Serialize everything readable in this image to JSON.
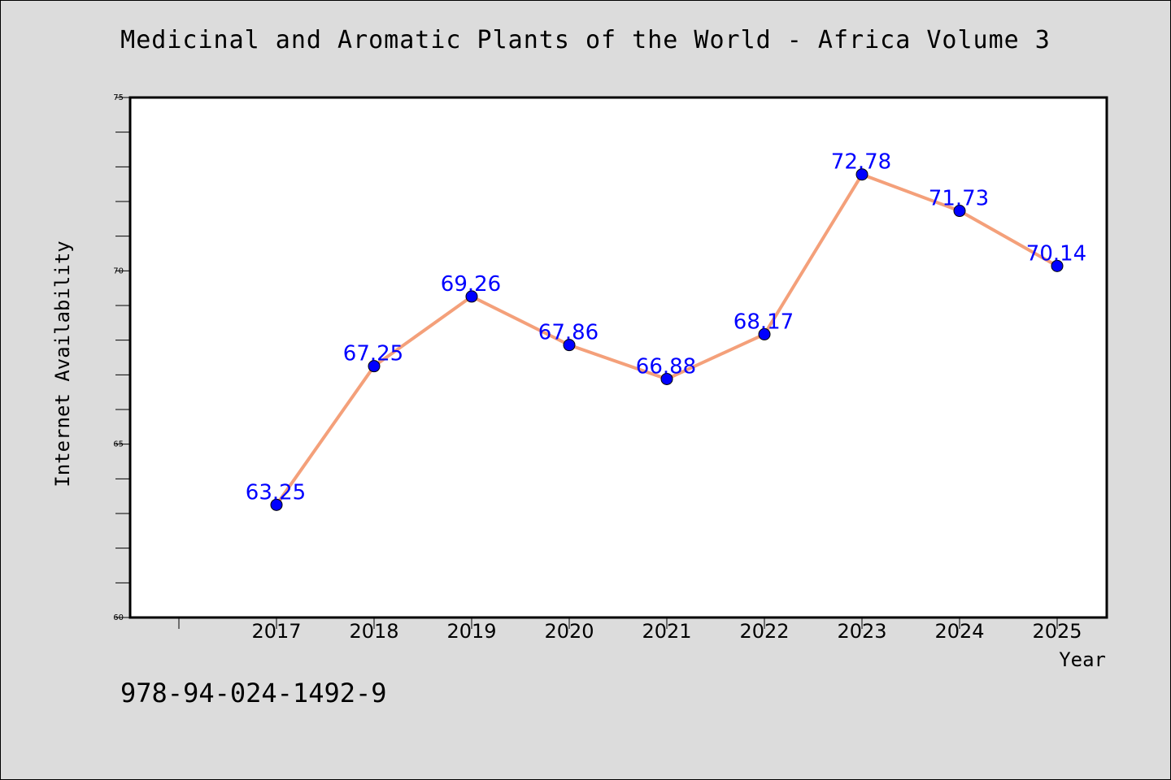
{
  "chart_data": {
    "type": "line",
    "title": "Medicinal and Aromatic Plants of the World - Africa Volume 3",
    "xlabel": "Year",
    "ylabel": "Internet Availability",
    "categories": [
      "2017",
      "2018",
      "2019",
      "2020",
      "2021",
      "2022",
      "2023",
      "2024",
      "2025"
    ],
    "values": [
      63.25,
      67.25,
      69.26,
      67.86,
      66.88,
      68.17,
      72.78,
      71.73,
      70.14
    ],
    "data_labels": [
      "63.25",
      "67.25",
      "69.26",
      "67.86",
      "66.88",
      "68.17",
      "72.78",
      "71.73",
      "70.14"
    ],
    "ylim": [
      60,
      75
    ],
    "yticks": [
      "60",
      "65",
      "70",
      "75"
    ],
    "grid": false,
    "line_color": "#f4a07a",
    "marker_color": "#0000ff",
    "label_color": "#0000ff"
  },
  "footer": {
    "isbn": "978-94-024-1492-9"
  }
}
